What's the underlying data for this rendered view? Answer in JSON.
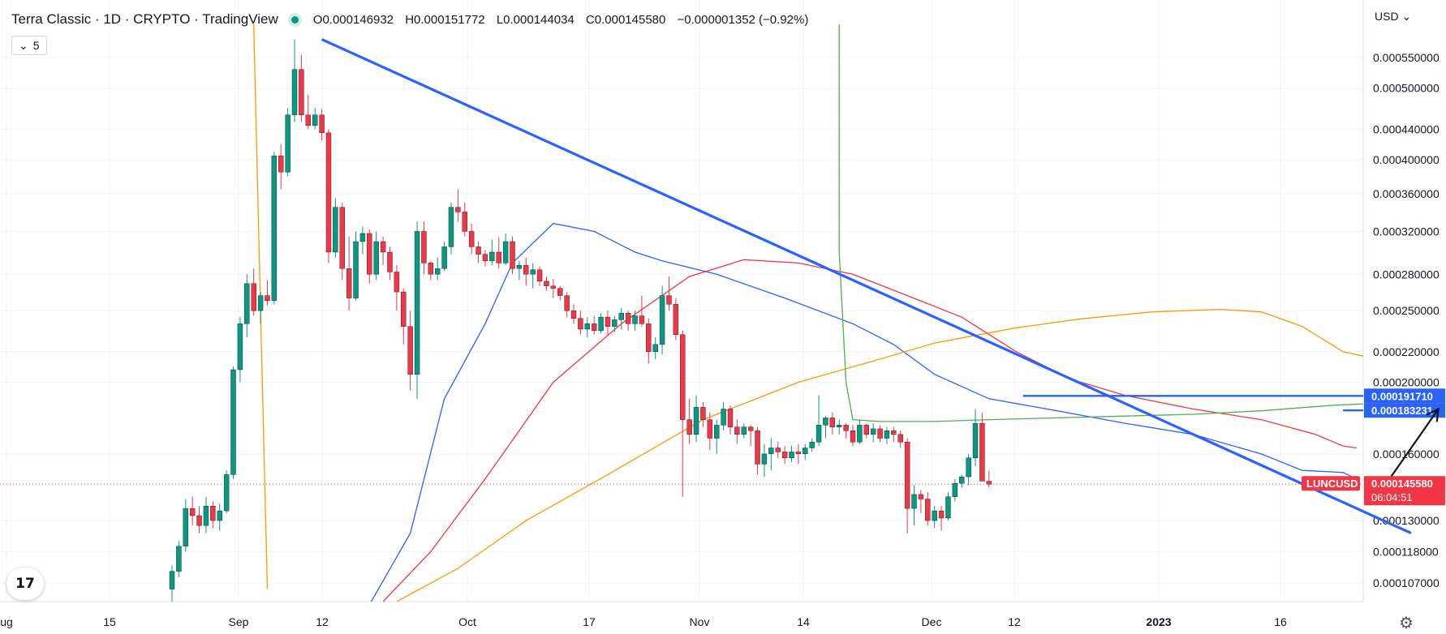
{
  "header": {
    "title": "Terra Classic · 1D · CRYPTO · TradingView",
    "ohlc": [
      {
        "k": "O",
        "v": "0.000146932"
      },
      {
        "k": "H",
        "v": "0.000151772"
      },
      {
        "k": "L",
        "v": "0.000144034"
      },
      {
        "k": "C",
        "v": "0.000145580"
      }
    ],
    "change": "−0.000001352 (−0.92%)",
    "collapse_label": "5",
    "currency": "USD"
  },
  "colors": {
    "up": "#089981",
    "down": "#f23645",
    "ma_blue": "#2962ff",
    "ma_red": "#f23645",
    "ma_orange": "#ff9800",
    "ma_green": "#4caf50",
    "drawing_blue": "#2962ff",
    "bg": "#ffffff",
    "grid": "#f0f3fa",
    "label_blue": "#2962ff",
    "label_red": "#f23645"
  },
  "chart_data": {
    "type": "candlestick",
    "y_scale": "log",
    "ylim": [
      0.000101,
      0.00061
    ],
    "y_ticks": [
      "0.000550000",
      "0.000500000",
      "0.000440000",
      "0.000400000",
      "0.000360000",
      "0.000320000",
      "0.000280000",
      "0.000250000",
      "0.000220000",
      "0.000200000",
      "0.000160000",
      "0.000130000",
      "0.000118000",
      "0.000107000"
    ],
    "x_tick_labels": [
      "ug",
      "15",
      "Sep",
      "12",
      "Oct",
      "17",
      "Nov",
      "14",
      "Dec",
      "12",
      "2023",
      "16"
    ],
    "candles": [
      [
        0.000105,
        0.000113,
        0.0001,
        0.000111
      ],
      [
        0.000111,
        0.000122,
        0.000109,
        0.00012
      ],
      [
        0.00012,
        0.000139,
        0.000118,
        0.000135
      ],
      [
        0.000135,
        0.00014,
        0.000128,
        0.000132
      ],
      [
        0.000132,
        0.000136,
        0.000125,
        0.000128
      ],
      [
        0.000128,
        0.00014,
        0.000125,
        0.000136
      ],
      [
        0.000136,
        0.000138,
        0.000127,
        0.00013
      ],
      [
        0.00013,
        0.000137,
        0.000126,
        0.000134
      ],
      [
        0.000134,
        0.000152,
        0.000133,
        0.00015
      ],
      [
        0.00015,
        0.00021,
        0.000148,
        0.000208
      ],
      [
        0.000208,
        0.000245,
        0.0002,
        0.00024
      ],
      [
        0.00024,
        0.00028,
        0.00023,
        0.000272
      ],
      [
        0.000272,
        0.000285,
        0.000246,
        0.00025
      ],
      [
        0.00025,
        0.000265,
        0.00024,
        0.000262
      ],
      [
        0.000262,
        0.000275,
        0.000254,
        0.000258
      ],
      [
        0.000258,
        0.00041,
        0.000255,
        0.000405
      ],
      [
        0.000405,
        0.00042,
        0.000365,
        0.000385
      ],
      [
        0.000385,
        0.00047,
        0.00038,
        0.00046
      ],
      [
        0.00046,
        0.000582,
        0.00045,
        0.00053
      ],
      [
        0.00053,
        0.000555,
        0.00045,
        0.00046
      ],
      [
        0.00046,
        0.00049,
        0.00044,
        0.000445
      ],
      [
        0.000445,
        0.00047,
        0.00044,
        0.00046
      ],
      [
        0.00046,
        0.000468,
        0.000425,
        0.000435
      ],
      [
        0.000435,
        0.00044,
        0.00029,
        0.0003
      ],
      [
        0.0003,
        0.000355,
        0.000295,
        0.000345
      ],
      [
        0.000345,
        0.00035,
        0.000275,
        0.000285
      ],
      [
        0.000285,
        0.000315,
        0.00025,
        0.00026
      ],
      [
        0.00026,
        0.00032,
        0.000258,
        0.00031
      ],
      [
        0.00031,
        0.000325,
        0.000298,
        0.000318
      ],
      [
        0.000318,
        0.000322,
        0.000272,
        0.00028
      ],
      [
        0.00028,
        0.00032,
        0.000275,
        0.00031
      ],
      [
        0.00031,
        0.000315,
        0.000288,
        0.0003
      ],
      [
        0.0003,
        0.000305,
        0.000275,
        0.000282
      ],
      [
        0.000282,
        0.000288,
        0.00025,
        0.000265
      ],
      [
        0.000265,
        0.000268,
        0.000225,
        0.000238
      ],
      [
        0.000238,
        0.00025,
        0.000195,
        0.000205
      ],
      [
        0.000205,
        0.00033,
        0.00019,
        0.00032
      ],
      [
        0.00032,
        0.00033,
        0.00028,
        0.00029
      ],
      [
        0.00029,
        0.000292,
        0.000275,
        0.00028
      ],
      [
        0.00028,
        0.000295,
        0.000275,
        0.000285
      ],
      [
        0.000285,
        0.00031,
        0.000283,
        0.000305
      ],
      [
        0.000305,
        0.00035,
        0.000298,
        0.000345
      ],
      [
        0.000345,
        0.000365,
        0.00033,
        0.00034
      ],
      [
        0.00034,
        0.00035,
        0.000315,
        0.00032
      ],
      [
        0.00032,
        0.000328,
        0.000298,
        0.000305
      ],
      [
        0.000305,
        0.00031,
        0.00029,
        0.000298
      ],
      [
        0.000298,
        0.000302,
        0.000287,
        0.000292
      ],
      [
        0.000292,
        0.000312,
        0.000288,
        0.0003
      ],
      [
        0.0003,
        0.000314,
        0.000285,
        0.00029
      ],
      [
        0.00029,
        0.000318,
        0.000288,
        0.00031
      ],
      [
        0.00031,
        0.000315,
        0.00028,
        0.000285
      ],
      [
        0.000285,
        0.000292,
        0.000275,
        0.000288
      ],
      [
        0.000288,
        0.000295,
        0.00027,
        0.00028
      ],
      [
        0.00028,
        0.00029,
        0.000268,
        0.000284
      ],
      [
        0.000284,
        0.000287,
        0.00027,
        0.000274
      ],
      [
        0.000274,
        0.000278,
        0.000266,
        0.00027
      ],
      [
        0.00027,
        0.000276,
        0.00026,
        0.000268
      ],
      [
        0.000268,
        0.00027,
        0.000258,
        0.000262
      ],
      [
        0.000262,
        0.000265,
        0.000245,
        0.00025
      ],
      [
        0.00025,
        0.000255,
        0.00024,
        0.000244
      ],
      [
        0.000244,
        0.00025,
        0.000232,
        0.000236
      ],
      [
        0.000236,
        0.000245,
        0.00023,
        0.00024
      ],
      [
        0.00024,
        0.000246,
        0.000232,
        0.000235
      ],
      [
        0.000235,
        0.000248,
        0.000233,
        0.000245
      ],
      [
        0.000245,
        0.00025,
        0.000232,
        0.000238
      ],
      [
        0.000238,
        0.000246,
        0.000234,
        0.000243
      ],
      [
        0.000243,
        0.000252,
        0.000236,
        0.000248
      ],
      [
        0.000248,
        0.00025,
        0.000235,
        0.00024
      ],
      [
        0.00024,
        0.00025,
        0.000235,
        0.000246
      ],
      [
        0.000246,
        0.000262,
        0.000238,
        0.00024
      ],
      [
        0.00024,
        0.000244,
        0.000212,
        0.00022
      ],
      [
        0.00022,
        0.00023,
        0.000215,
        0.000225
      ],
      [
        0.000225,
        0.00027,
        0.000218,
        0.000262
      ],
      [
        0.000262,
        0.000278,
        0.00025,
        0.000255
      ],
      [
        0.000255,
        0.00026,
        0.000228,
        0.000232
      ],
      [
        0.000232,
        0.000235,
        0.00014,
        0.000178
      ],
      [
        0.000178,
        0.00019,
        0.000165,
        0.00017
      ],
      [
        0.00017,
        0.000192,
        0.000166,
        0.000185
      ],
      [
        0.000185,
        0.000188,
        0.000174,
        0.000178
      ],
      [
        0.000178,
        0.000182,
        0.000162,
        0.000168
      ],
      [
        0.000168,
        0.000178,
        0.00016,
        0.000175
      ],
      [
        0.000175,
        0.000188,
        0.000172,
        0.000184
      ],
      [
        0.000184,
        0.000186,
        0.00017,
        0.000174
      ],
      [
        0.000174,
        0.000178,
        0.000165,
        0.00017
      ],
      [
        0.00017,
        0.000176,
        0.000168,
        0.000174
      ],
      [
        0.000174,
        0.000175,
        0.000164,
        0.000172
      ],
      [
        0.000172,
        0.000174,
        0.00015,
        0.000155
      ],
      [
        0.000155,
        0.000165,
        0.000149,
        0.00016
      ],
      [
        0.00016,
        0.000168,
        0.000152,
        0.000163
      ],
      [
        0.000163,
        0.000166,
        0.000158,
        0.000161
      ],
      [
        0.000161,
        0.000164,
        0.000155,
        0.000158
      ],
      [
        0.000158,
        0.000164,
        0.000156,
        0.000161
      ],
      [
        0.000161,
        0.000165,
        0.000155,
        0.00016
      ],
      [
        0.00016,
        0.000165,
        0.000157,
        0.000163
      ],
      [
        0.000163,
        0.000168,
        0.000161,
        0.000166
      ],
      [
        0.000166,
        0.000192,
        0.000164,
        0.000175
      ],
      [
        0.000175,
        0.00018,
        0.000168,
        0.000179
      ],
      [
        0.000179,
        0.000182,
        0.00017,
        0.000174
      ],
      [
        0.000174,
        0.000178,
        0.00017,
        0.000175
      ],
      [
        0.000175,
        0.000176,
        0.000168,
        0.000172
      ],
      [
        0.000172,
        0.000175,
        0.000164,
        0.000166
      ],
      [
        0.000166,
        0.000178,
        0.000165,
        0.000175
      ],
      [
        0.000175,
        0.000176,
        0.000168,
        0.00017
      ],
      [
        0.00017,
        0.000176,
        0.000166,
        0.000173
      ],
      [
        0.000173,
        0.000175,
        0.000166,
        0.000168
      ],
      [
        0.000168,
        0.000174,
        0.000165,
        0.000172
      ],
      [
        0.000172,
        0.000174,
        0.000166,
        0.00017
      ],
      [
        0.00017,
        0.000172,
        0.000163,
        0.000166
      ],
      [
        0.000166,
        0.000168,
        0.000125,
        0.000135
      ],
      [
        0.000135,
        0.000145,
        0.000128,
        0.000141
      ],
      [
        0.000141,
        0.000143,
        0.000133,
        0.000139
      ],
      [
        0.000139,
        0.000142,
        0.000128,
        0.00013
      ],
      [
        0.00013,
        0.000136,
        0.000127,
        0.000134
      ],
      [
        0.000134,
        0.000136,
        0.000126,
        0.000131
      ],
      [
        0.000131,
        0.000142,
        0.00013,
        0.00014
      ],
      [
        0.00014,
        0.000148,
        0.000138,
        0.000146
      ],
      [
        0.000146,
        0.00015,
        0.000144,
        0.000149
      ],
      [
        0.000149,
        0.00016,
        0.000145,
        0.000158
      ],
      [
        0.000158,
        0.000184,
        0.000154,
        0.000176
      ],
      [
        0.000176,
        0.000182,
        0.000147,
        0.000147
      ],
      [
        0.000146932,
        0.000151772,
        0.000144034,
        0.00014558
      ]
    ],
    "lines": [
      {
        "name": "",
        "color": "#2962ff",
        "points": [
          [
            29,
            0.0001
          ],
          [
            35,
            0.000125
          ],
          [
            40,
            0.00019
          ],
          [
            46,
            0.00024
          ],
          [
            50,
            0.00029
          ],
          [
            56,
            0.000328
          ],
          [
            62,
            0.00032
          ],
          [
            68,
            0.0003
          ],
          [
            72,
            0.000292
          ],
          [
            80,
            0.00028
          ],
          [
            90,
            0.00026
          ],
          [
            100,
            0.00024
          ],
          [
            106,
            0.000225
          ],
          [
            112,
            0.000205
          ],
          [
            120,
            0.00019
          ],
          [
            130,
            0.000183
          ],
          [
            140,
            0.000176
          ],
          [
            150,
            0.00017
          ],
          [
            160,
            0.00016
          ],
          [
            166,
            0.000152
          ],
          [
            172,
            0.000151
          ],
          [
            174,
            0.000148
          ]
        ]
      },
      {
        "name": "",
        "color": "#f23645",
        "points": [
          [
            31,
            0.000101
          ],
          [
            38,
            0.000118
          ],
          [
            46,
            0.000148
          ],
          [
            56,
            0.0002
          ],
          [
            66,
            0.00024
          ],
          [
            76,
            0.000278
          ],
          [
            84,
            0.000293
          ],
          [
            92,
            0.00029
          ],
          [
            100,
            0.00028
          ],
          [
            108,
            0.000262
          ],
          [
            116,
            0.000245
          ],
          [
            124,
            0.00022
          ],
          [
            132,
            0.000202
          ],
          [
            140,
            0.000192
          ],
          [
            150,
            0.000184
          ],
          [
            160,
            0.000178
          ],
          [
            168,
            0.00017
          ],
          [
            172,
            0.000164
          ],
          [
            174,
            0.000163
          ]
        ]
      },
      {
        "name": "",
        "color": "#ff9800",
        "points": [
          [
            33,
            0.000101
          ],
          [
            42,
            0.000112
          ],
          [
            52,
            0.00013
          ],
          [
            64,
            0.00015
          ],
          [
            78,
            0.000178
          ],
          [
            92,
            0.0002
          ],
          [
            104,
            0.000215
          ],
          [
            112,
            0.000226
          ],
          [
            124,
            0.000237
          ],
          [
            134,
            0.000244
          ],
          [
            144,
            0.000249
          ],
          [
            154,
            0.000251
          ],
          [
            160,
            0.000249
          ],
          [
            166,
            0.000238
          ],
          [
            172,
            0.00022
          ],
          [
            180,
            0.000212
          ]
        ]
      },
      {
        "name": "",
        "color": "#ff9800",
        "points": [
          [
            12,
            0.00061
          ],
          [
            13,
            0.00025
          ],
          [
            14,
            0.000105
          ]
        ]
      },
      {
        "name": "",
        "color": "#4caf50",
        "points": [
          [
            98,
            0.00061
          ],
          [
            98,
            0.0003
          ],
          [
            99,
            0.0002
          ],
          [
            100,
            0.000178
          ],
          [
            104,
            0.000177
          ],
          [
            112,
            0.000177
          ],
          [
            120,
            0.000178
          ],
          [
            130,
            0.000179
          ],
          [
            140,
            0.00018
          ],
          [
            150,
            0.000181
          ],
          [
            160,
            0.000183
          ],
          [
            170,
            0.000186
          ],
          [
            175,
            0.000187
          ]
        ]
      }
    ],
    "trendlines": [
      {
        "from": [
          22,
          0.000582
        ],
        "to": [
          182,
          0.000125
        ],
        "color": "#2962ff"
      }
    ],
    "hlines": [
      {
        "value": 0.00019171,
        "from_x": 125,
        "label": "0.000191710",
        "color": "#2962ff"
      },
      {
        "value": 0.000183231,
        "from_x": 172,
        "label": "0.000183231",
        "color": "#2962ff"
      }
    ],
    "arrow": {
      "from": [
        177,
        0.00014
      ],
      "to": [
        186,
        0.000184
      ]
    },
    "current_price": {
      "value": 0.00014558,
      "symbol": "LUNCUSD",
      "label": "0.000145580",
      "countdown": "06:04:51"
    }
  }
}
